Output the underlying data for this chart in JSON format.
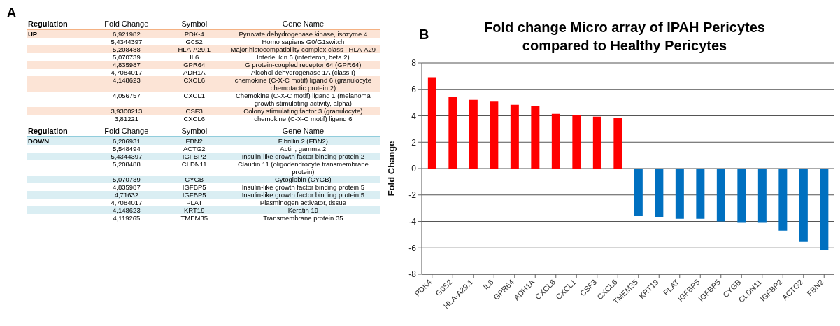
{
  "chart_data": [
    {
      "type": "other",
      "title": "A",
      "categories": [
        "Regulation",
        "Fold Change",
        "Symbol",
        "Gene Name"
      ],
      "cell_labels": [
        [
          "UP",
          "6,921982",
          "PDK-4",
          "Pyruvate dehydrogenase kinase, isozyme 4"
        ],
        [
          null,
          "5,4344397",
          "G0S2",
          "Homo sapiens G0/G1switch"
        ],
        [
          null,
          "5,208488",
          "HLA-A29.1",
          "Major histocompatibility complex class I HLA-A29"
        ],
        [
          null,
          "5,070739",
          "IL6",
          "Interleukin 6 (interferon, beta 2)"
        ],
        [
          null,
          "4,835987",
          "GPR64",
          "G protein-coupled receptor 64 (GPR64)"
        ],
        [
          null,
          "4,7084017",
          "ADH1A",
          "Alcohol dehydrogenase 1A (class I)"
        ],
        [
          null,
          "4,148623",
          "CXCL6",
          "chemokine (C-X-C motif) ligand 6 (granulocyte chemotactic protein 2)"
        ],
        [
          null,
          "4,056757",
          "CXCL1",
          "Chemokine (C-X-C motif) ligand 1 (melanoma growth stimulating activity, alpha)"
        ],
        [
          null,
          "3,9300213",
          "CSF3",
          "Colony stimulating factor 3 (granulocyte)"
        ],
        [
          null,
          "3,81221",
          "CXCL6",
          "chemokine (C-X-C motif) ligand 6"
        ]
      ]
    },
    {
      "type": "other",
      "categories": [
        "Regulation",
        "Fold Change",
        "Symbol",
        "Gene Name"
      ],
      "cell_labels": [
        [
          "DOWN",
          "6,206931",
          "FBN2",
          "Fibrillin 2 (FBN2)"
        ],
        [
          null,
          "5,548494",
          "ACTG2",
          "Actin, gamma 2"
        ],
        [
          null,
          "5,4344397",
          "IGFBP2",
          "Insulin-like growth factor binding protein 2"
        ],
        [
          null,
          "5,208488",
          "CLDN11",
          "Claudin 11 (oligodendrocyte transmembrane protein)"
        ],
        [
          null,
          "5,070739",
          "CYGB",
          "Cytoglobin (CYGB)"
        ],
        [
          null,
          "4,835987",
          "IGFBP5",
          "Insulin-like growth factor binding protein 5"
        ],
        [
          null,
          "4,71632",
          "IGFBP5",
          "Insulin-like growth factor binding protein 5"
        ],
        [
          null,
          "4,7084017",
          "PLAT",
          "Plasminogen activator, tissue"
        ],
        [
          null,
          "4,148623",
          "KRT19",
          "Keratin 19"
        ],
        [
          null,
          "4,119265",
          "TMEM35",
          "Transmembrane protein 35"
        ]
      ]
    },
    {
      "type": "bar",
      "title": "Fold change Micro array of IPAH Pericytes compared to Healthy Pericytes",
      "ylabel": "Fold Change",
      "annotations": [
        "B"
      ],
      "categories": [
        "PDK4",
        "G0S2",
        "HLA-A29.1",
        "IL6",
        "GPR64",
        "ADH1A",
        "CXCL6",
        "CXCL1",
        "CSF3",
        "CXCL6",
        "TMEM35",
        "KRT19",
        "PLAT",
        "IGFBP5",
        "IGFBP5",
        "CYGB",
        "CLDN11",
        "IGFBP2",
        "ACTG2",
        "FBN2"
      ],
      "values": [
        6.92,
        5.43,
        5.21,
        5.07,
        4.84,
        4.71,
        4.15,
        4.06,
        3.93,
        3.81,
        -3.6,
        -3.65,
        -3.8,
        -3.8,
        -4.0,
        -4.1,
        -4.1,
        -4.7,
        -5.55,
        -6.2
      ],
      "colors": [
        "#ff0000",
        "#ff0000",
        "#ff0000",
        "#ff0000",
        "#ff0000",
        "#ff0000",
        "#ff0000",
        "#ff0000",
        "#ff0000",
        "#ff0000",
        "#0070c0",
        "#0070c0",
        "#0070c0",
        "#0070c0",
        "#0070c0",
        "#0070c0",
        "#0070c0",
        "#0070c0",
        "#0070c0",
        "#0070c0"
      ],
      "ylim": [
        -8,
        8
      ],
      "yticks": [
        -8,
        -6,
        -4,
        -2,
        0,
        2,
        4,
        6,
        8
      ],
      "grid": "y",
      "legend": false
    }
  ]
}
